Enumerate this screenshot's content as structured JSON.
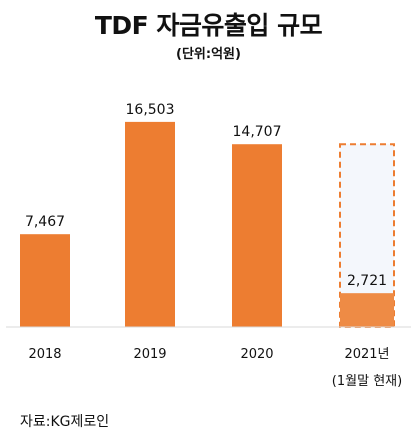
{
  "header": {
    "title": "TDF 자금유출입 규모",
    "unit": "(단위:억원)"
  },
  "chart_data": {
    "type": "bar",
    "categories": [
      "2018",
      "2019",
      "2020",
      "2021년"
    ],
    "category_notes": [
      "",
      "",
      "",
      "(1월말 현재)"
    ],
    "values": [
      7467,
      16503,
      14707,
      2721
    ],
    "value_labels": [
      "7,467",
      "16,503",
      "14,707",
      "2,721"
    ],
    "ylim": [
      0,
      21000
    ],
    "grid": false,
    "highlight": {
      "category": "2021년",
      "outline_value": 14707,
      "style": "dashed-outline",
      "outline_color": "#ED7D31",
      "fill_color": "#F4F7FC"
    },
    "colors": {
      "bar": "#ED7D31",
      "highlight_bar": "#EE8B45"
    }
  },
  "footer": {
    "source": "자료:KG제로인"
  }
}
